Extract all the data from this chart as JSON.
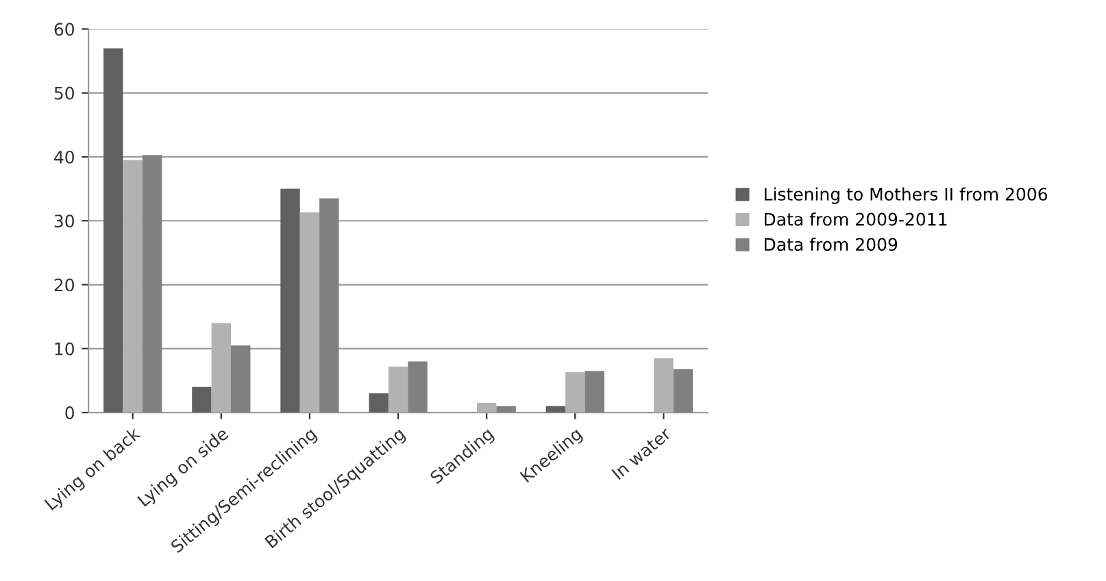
{
  "chart_data": {
    "type": "bar",
    "categories": [
      "Lying on back",
      "Lying on side",
      "Sitting/Semi-reclining",
      "Birth stool/Squatting",
      "Standing",
      "Kneeling",
      "In water"
    ],
    "series": [
      {
        "name": "Listening to Mothers II from 2006",
        "color": "#606060",
        "values": [
          57,
          4,
          35,
          3,
          null,
          1,
          null
        ]
      },
      {
        "name": "Data from 2009-2011",
        "color": "#b2b2b2",
        "values": [
          39.5,
          14,
          31.3,
          7.2,
          1.5,
          6.3,
          8.5
        ]
      },
      {
        "name": "Data from 2009",
        "color": "#808080",
        "values": [
          40.3,
          10.5,
          33.5,
          8,
          1,
          6.5,
          6.8
        ]
      }
    ],
    "ylim": [
      0,
      60
    ],
    "yticks": [
      0,
      10,
      20,
      30,
      40,
      50,
      60
    ],
    "grid": "y",
    "legend": "right"
  }
}
